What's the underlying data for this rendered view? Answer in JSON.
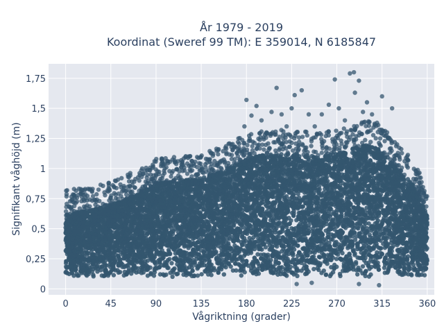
{
  "chart_data": {
    "type": "scatter",
    "title_line1": "År 1979 - 2019",
    "title_line2": "Koordinat (Sweref 99 TM): E 359014, N 6185847",
    "xlabel": "Vågriktning (grader)",
    "ylabel": "Signifikant våghöjd (m)",
    "xlim": [
      -17,
      367
    ],
    "ylim": [
      -0.05,
      1.87
    ],
    "x_ticks": [
      0,
      45,
      90,
      135,
      180,
      225,
      270,
      315,
      360
    ],
    "x_tick_labels": [
      "0",
      "45",
      "90",
      "135",
      "180",
      "225",
      "270",
      "315",
      "360"
    ],
    "y_ticks": [
      0,
      0.25,
      0.5,
      0.75,
      1,
      1.25,
      1.5,
      1.75
    ],
    "y_tick_labels": [
      "0",
      "0,25",
      "0,5",
      "0,75",
      "1",
      "1,25",
      "1,5",
      "1,75"
    ],
    "grid": true,
    "marker_color": "#34566f",
    "plot_bg": "#e5e8ef",
    "envelope": {
      "x": [
        0,
        20,
        45,
        70,
        90,
        110,
        135,
        160,
        180,
        200,
        225,
        250,
        270,
        290,
        300,
        315,
        330,
        345,
        355,
        360
      ],
      "y_max": [
        0.62,
        0.65,
        0.7,
        0.78,
        0.88,
        0.9,
        0.92,
        1.0,
        1.08,
        1.12,
        1.12,
        1.1,
        1.12,
        1.18,
        1.2,
        1.15,
        1.0,
        0.88,
        0.72,
        0.6
      ],
      "y_min": [
        0.1,
        0.1,
        0.1,
        0.1,
        0.1,
        0.1,
        0.1,
        0.1,
        0.1,
        0.1,
        0.1,
        0.1,
        0.1,
        0.1,
        0.1,
        0.1,
        0.1,
        0.1,
        0.1,
        0.1
      ]
    },
    "outliers": [
      {
        "x": 5,
        "y": 0.67
      },
      {
        "x": 20,
        "y": 0.68
      },
      {
        "x": 30,
        "y": 0.6
      },
      {
        "x": 48,
        "y": 0.85
      },
      {
        "x": 58,
        "y": 0.84
      },
      {
        "x": 75,
        "y": 0.8
      },
      {
        "x": 85,
        "y": 0.83
      },
      {
        "x": 95,
        "y": 1.02
      },
      {
        "x": 115,
        "y": 1.01
      },
      {
        "x": 125,
        "y": 1.03
      },
      {
        "x": 145,
        "y": 1.04
      },
      {
        "x": 160,
        "y": 1.12
      },
      {
        "x": 165,
        "y": 1.2
      },
      {
        "x": 172,
        "y": 1.25
      },
      {
        "x": 178,
        "y": 1.35
      },
      {
        "x": 180,
        "y": 1.57
      },
      {
        "x": 185,
        "y": 1.44
      },
      {
        "x": 190,
        "y": 1.52
      },
      {
        "x": 195,
        "y": 1.4
      },
      {
        "x": 200,
        "y": 1.3
      },
      {
        "x": 205,
        "y": 1.47
      },
      {
        "x": 210,
        "y": 1.67
      },
      {
        "x": 215,
        "y": 1.45
      },
      {
        "x": 220,
        "y": 1.35
      },
      {
        "x": 225,
        "y": 1.5
      },
      {
        "x": 228,
        "y": 1.61
      },
      {
        "x": 235,
        "y": 1.65
      },
      {
        "x": 242,
        "y": 1.45
      },
      {
        "x": 248,
        "y": 1.35
      },
      {
        "x": 255,
        "y": 1.45
      },
      {
        "x": 262,
        "y": 1.53
      },
      {
        "x": 268,
        "y": 1.74
      },
      {
        "x": 272,
        "y": 1.5
      },
      {
        "x": 278,
        "y": 1.4
      },
      {
        "x": 283,
        "y": 1.79
      },
      {
        "x": 287,
        "y": 1.8
      },
      {
        "x": 288,
        "y": 1.63
      },
      {
        "x": 292,
        "y": 1.73
      },
      {
        "x": 296,
        "y": 1.47
      },
      {
        "x": 300,
        "y": 1.55
      },
      {
        "x": 305,
        "y": 1.45
      },
      {
        "x": 310,
        "y": 1.38
      },
      {
        "x": 315,
        "y": 1.6
      },
      {
        "x": 320,
        "y": 1.3
      },
      {
        "x": 325,
        "y": 1.5
      },
      {
        "x": 330,
        "y": 1.2
      },
      {
        "x": 340,
        "y": 1.1
      },
      {
        "x": 350,
        "y": 0.95
      },
      {
        "x": 355,
        "y": 0.82
      }
    ],
    "low_outliers": [
      {
        "x": 230,
        "y": 0.04
      },
      {
        "x": 245,
        "y": 0.05
      },
      {
        "x": 292,
        "y": 0.04
      },
      {
        "x": 312,
        "y": 0.03
      }
    ]
  }
}
